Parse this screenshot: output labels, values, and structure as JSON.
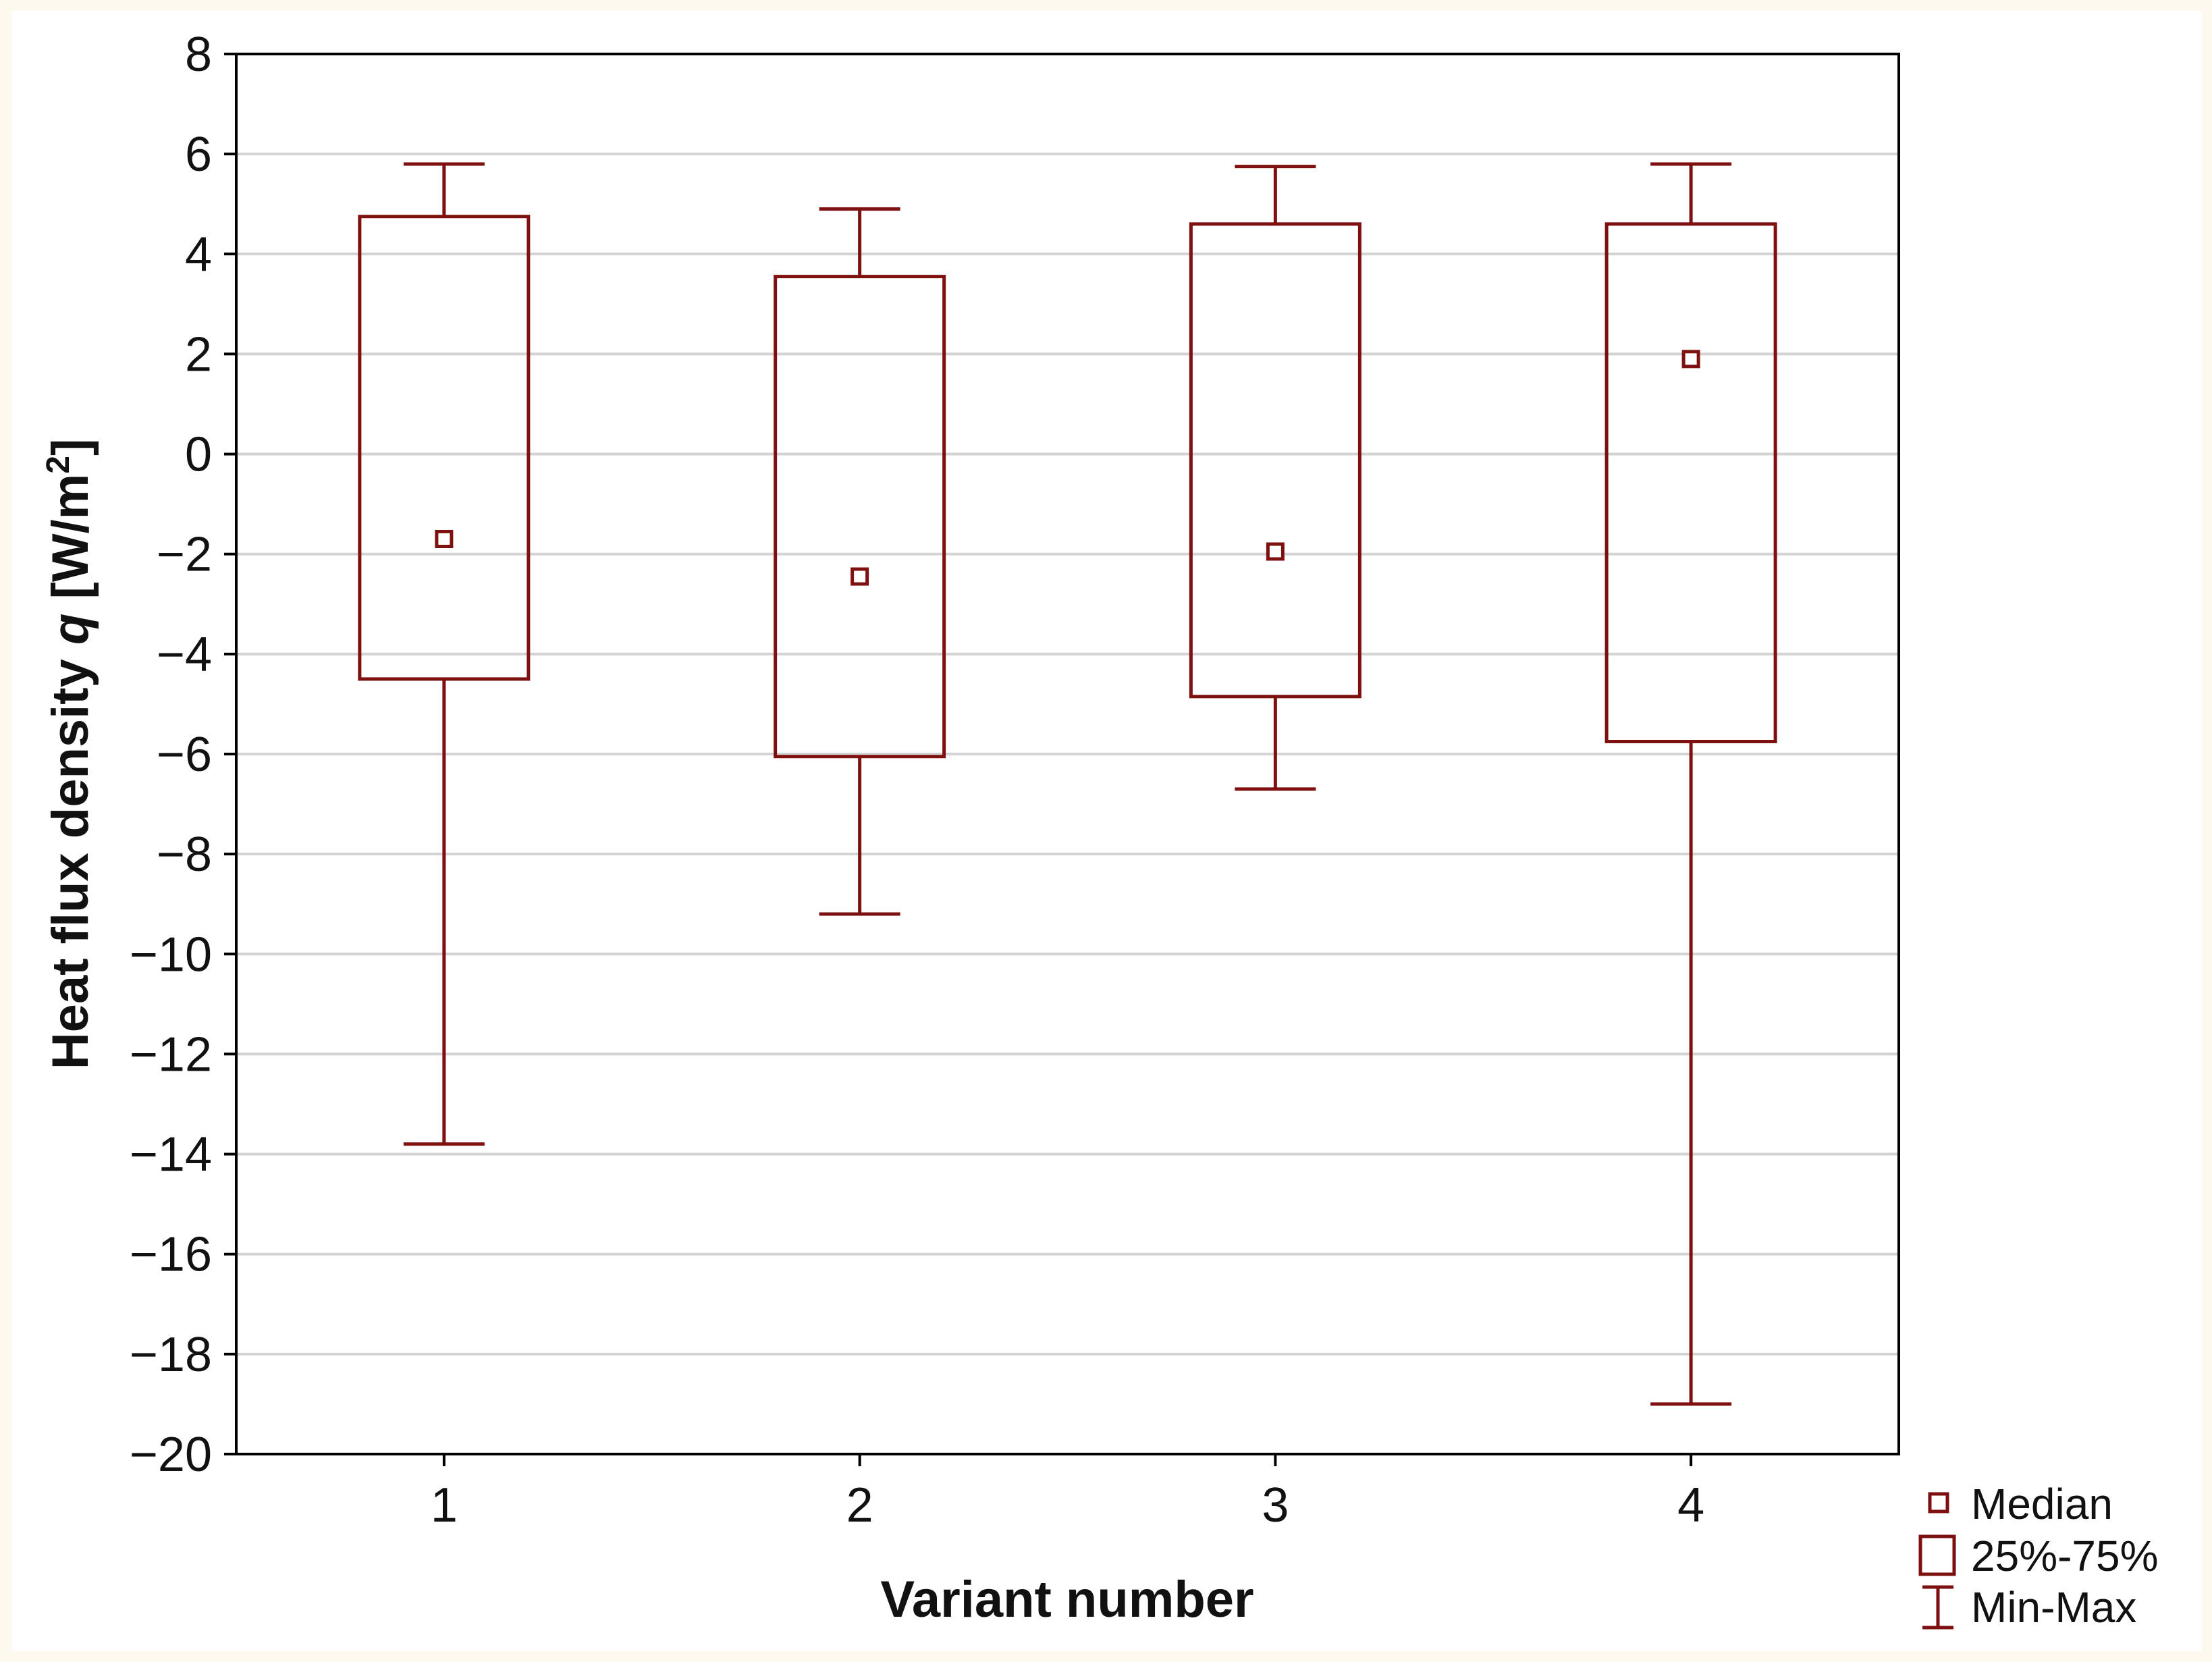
{
  "chart_data": {
    "type": "boxplot",
    "xlabel": "Variant number",
    "ylabel": "Heat flux density q [W/m2]",
    "ylabel_parts": {
      "before": "Heat flux density ",
      "italic": "q",
      "bracket": " [W/m",
      "sup": "2",
      "close": "]"
    },
    "categories": [
      "1",
      "2",
      "3",
      "4"
    ],
    "ylim": [
      -20,
      8
    ],
    "yticks": [
      "8",
      "6",
      "4",
      "2",
      "0",
      "−2",
      "−4",
      "−6",
      "−8",
      "−10",
      "−12",
      "−14",
      "−16",
      "−18",
      "−20"
    ],
    "ytick_values": [
      8,
      6,
      4,
      2,
      0,
      -2,
      -4,
      -6,
      -8,
      -10,
      -12,
      -14,
      -16,
      -18,
      -20
    ],
    "grid": true,
    "legend_position": "bottom-right",
    "series": [
      {
        "category": "1",
        "min": -13.8,
        "q1": -4.5,
        "median": -1.7,
        "q3": 4.75,
        "max": 5.8
      },
      {
        "category": "2",
        "min": -9.2,
        "q1": -6.05,
        "median": -2.45,
        "q3": 3.55,
        "max": 4.9
      },
      {
        "category": "3",
        "min": -6.7,
        "q1": -4.85,
        "median": -1.95,
        "q3": 4.6,
        "max": 5.75
      },
      {
        "category": "4",
        "min": -19.0,
        "q1": -5.75,
        "median": 1.9,
        "q3": 4.6,
        "max": 5.8
      }
    ],
    "legend": [
      "Median",
      "25%-75%",
      "Min-Max"
    ],
    "colors": {
      "series": "#7f1010",
      "grid": "#d3d3d3",
      "frame": "#000000",
      "plot_bg": "#ffffff",
      "page_bg": "#fdf9ef"
    }
  }
}
